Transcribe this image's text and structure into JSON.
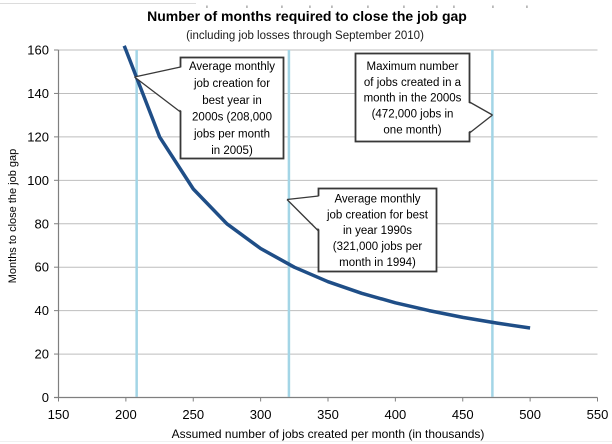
{
  "title": "Number of months required to close the job gap",
  "subtitle": "(including job losses through September 2010)",
  "chart_data": {
    "type": "line",
    "title": "Number of months required to close the job gap",
    "subtitle": "(including job losses through September 2010)",
    "xlabel": "Assumed number of jobs created per month (in thousands)",
    "ylabel": "Months to close the job gap",
    "xlim": [
      150,
      550
    ],
    "ylim": [
      0,
      160
    ],
    "x_ticks": [
      150,
      200,
      250,
      300,
      350,
      400,
      450,
      500,
      550
    ],
    "y_ticks": [
      0,
      20,
      40,
      60,
      80,
      100,
      120,
      140,
      160
    ],
    "grid": "horizontal",
    "legend": "none",
    "series": [
      {
        "name": "Months to close the job gap",
        "x": [
          200,
          225,
          250,
          275,
          300,
          325,
          350,
          375,
          400,
          425,
          450,
          475,
          500
        ],
        "y": [
          160,
          120,
          96,
          80,
          68.6,
          60,
          53.3,
          48,
          43.6,
          40,
          36.9,
          34.3,
          32
        ],
        "color": "#1F4E87"
      }
    ],
    "reference_lines_x": [
      {
        "x": 208,
        "color": "#A3D5E6"
      },
      {
        "x": 321,
        "color": "#A3D5E6"
      },
      {
        "x": 472,
        "color": "#A3D5E6"
      }
    ]
  },
  "annotations": [
    {
      "target_x": 208,
      "lines": [
        "Average monthly",
        "job creation for",
        "best year in",
        "2000s (208,000",
        "jobs per month",
        "in 2005)"
      ]
    },
    {
      "target_x": 472,
      "lines": [
        "Maximum number",
        "of jobs created in a",
        "month in the 2000s",
        "(472,000 jobs in",
        "one month)"
      ]
    },
    {
      "target_x": 321,
      "lines": [
        "Average monthly",
        "job creation for best",
        "in year 1990s",
        "(321,000 jobs per",
        "month in 1994)"
      ]
    }
  ],
  "colors": {
    "line": "#1F4E87",
    "reference_line": "#A3D5E6",
    "gridline": "#BEBEBE",
    "axis": "#7F7F7F",
    "callout_border": "#383838"
  }
}
